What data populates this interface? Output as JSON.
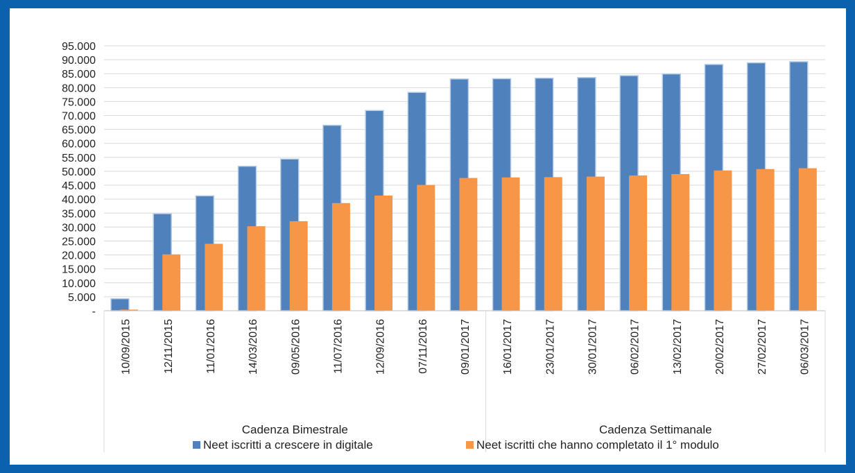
{
  "chart_data": {
    "type": "bar",
    "categories": [
      "10/09/2015",
      "12/11/2015",
      "11/01/2016",
      "14/03/2016",
      "09/05/2016",
      "11/07/2016",
      "12/09/2016",
      "07/11/2016",
      "09/01/2017",
      "16/01/2017",
      "23/01/2017",
      "30/01/2017",
      "06/02/2017",
      "13/02/2017",
      "20/02/2017",
      "27/02/2017",
      "06/03/2017"
    ],
    "groups": [
      {
        "label": "Cadenza Bimestrale",
        "start": 0,
        "end": 8
      },
      {
        "label": "Cadenza Settimanale",
        "start": 9,
        "end": 16
      }
    ],
    "series": [
      {
        "name": "Neet iscritti a crescere in digitale",
        "color": "#4f81bd",
        "values": [
          4300,
          34800,
          41200,
          51800,
          54400,
          66500,
          71800,
          78300,
          83100,
          83200,
          83400,
          83600,
          84300,
          84900,
          88300,
          88900,
          89300
        ]
      },
      {
        "name": "Neet iscritti che hanno completato il 1° modulo",
        "color": "#f79646",
        "values": [
          400,
          20200,
          24000,
          30300,
          32100,
          38600,
          41300,
          45100,
          47600,
          47800,
          47900,
          48100,
          48500,
          49000,
          50300,
          50800,
          51100
        ]
      }
    ],
    "yticks": [
      "-",
      "5.000",
      "10.000",
      "15.000",
      "20.000",
      "25.000",
      "30.000",
      "35.000",
      "40.000",
      "45.000",
      "50.000",
      "55.000",
      "60.000",
      "65.000",
      "70.000",
      "75.000",
      "80.000",
      "85.000",
      "90.000",
      "95.000"
    ],
    "ylim": [
      0,
      95000
    ],
    "grid": true,
    "legend_position": "bottom"
  }
}
